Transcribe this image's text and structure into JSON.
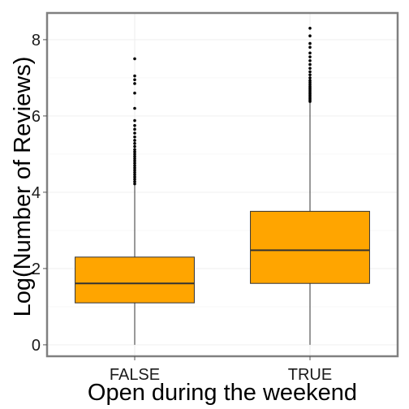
{
  "chart_data": {
    "type": "box",
    "title": "",
    "xlabel": "Open during the weekend",
    "ylabel": "Log(Number of Reviews)",
    "categories": [
      "FALSE",
      "TRUE"
    ],
    "ylim": [
      -0.3,
      8.7
    ],
    "yticks": [
      0,
      2,
      4,
      6,
      8
    ],
    "grid": true,
    "box_color": "#FFA500",
    "outline_color": "#333333",
    "boxes": [
      {
        "category": "FALSE",
        "min": 0,
        "q1": 1.1,
        "median": 1.61,
        "q3": 2.3,
        "whisker_high": 4.2,
        "outliers": [
          4.22,
          4.28,
          4.34,
          4.4,
          4.46,
          4.52,
          4.58,
          4.64,
          4.7,
          4.76,
          4.82,
          4.88,
          4.94,
          5.0,
          5.06,
          5.12,
          5.2,
          5.28,
          5.36,
          5.45,
          5.55,
          5.65,
          5.75,
          5.88,
          6.2,
          6.6,
          6.85,
          6.95,
          7.05,
          7.5
        ]
      },
      {
        "category": "TRUE",
        "min": 0,
        "q1": 1.61,
        "median": 2.48,
        "q3": 3.5,
        "whisker_high": 6.35,
        "outliers": [
          6.38,
          6.42,
          6.46,
          6.5,
          6.54,
          6.58,
          6.62,
          6.66,
          6.7,
          6.74,
          6.78,
          6.83,
          6.88,
          6.93,
          7.0,
          7.08,
          7.16,
          7.25,
          7.35,
          7.45,
          7.55,
          7.65,
          7.8,
          7.9,
          8.1,
          8.3
        ]
      }
    ]
  }
}
